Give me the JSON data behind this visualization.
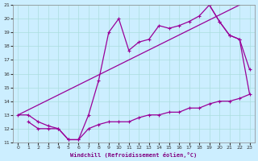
{
  "xlabel": "Windchill (Refroidissement éolien,°C)",
  "background_color": "#cceeff",
  "line_color": "#990099",
  "grid_color": "#aadddd",
  "xlim": [
    -0.5,
    23.5
  ],
  "ylim": [
    11,
    21
  ],
  "xticks": [
    0,
    1,
    2,
    3,
    4,
    5,
    6,
    7,
    8,
    9,
    10,
    11,
    12,
    13,
    14,
    15,
    16,
    17,
    18,
    19,
    20,
    21,
    22,
    23
  ],
  "yticks": [
    11,
    12,
    13,
    14,
    15,
    16,
    17,
    18,
    19,
    20,
    21
  ],
  "line1_x": [
    0,
    1,
    2,
    3,
    4,
    5,
    6,
    7,
    8,
    9,
    10,
    11,
    12,
    13,
    14,
    15,
    16,
    17,
    18,
    19,
    20,
    21,
    22,
    23
  ],
  "line1_y": [
    13.0,
    13.0,
    12.5,
    12.2,
    12.0,
    11.2,
    11.2,
    13.0,
    15.5,
    19.0,
    20.0,
    17.7,
    18.3,
    18.5,
    19.5,
    19.3,
    19.5,
    19.8,
    20.2,
    21.0,
    19.8,
    18.8,
    18.5,
    null
  ],
  "line2_x": [
    0,
    22
  ],
  "line2_y": [
    13.0,
    21.0
  ],
  "line3_x": [
    1,
    2,
    3,
    4,
    5,
    6,
    7,
    8,
    9,
    10,
    11,
    12,
    13,
    14,
    15,
    16,
    17,
    18,
    19,
    20,
    21,
    22,
    23
  ],
  "line3_y": [
    12.5,
    12.0,
    12.0,
    12.0,
    11.2,
    11.2,
    12.0,
    12.3,
    12.5,
    12.5,
    12.5,
    12.8,
    13.0,
    13.0,
    13.2,
    13.2,
    13.5,
    13.5,
    13.8,
    14.0,
    14.0,
    14.2,
    14.5
  ],
  "line4_x": [
    19,
    20,
    21,
    22,
    23
  ],
  "line4_y": [
    21.0,
    19.8,
    18.8,
    18.5,
    16.3
  ]
}
